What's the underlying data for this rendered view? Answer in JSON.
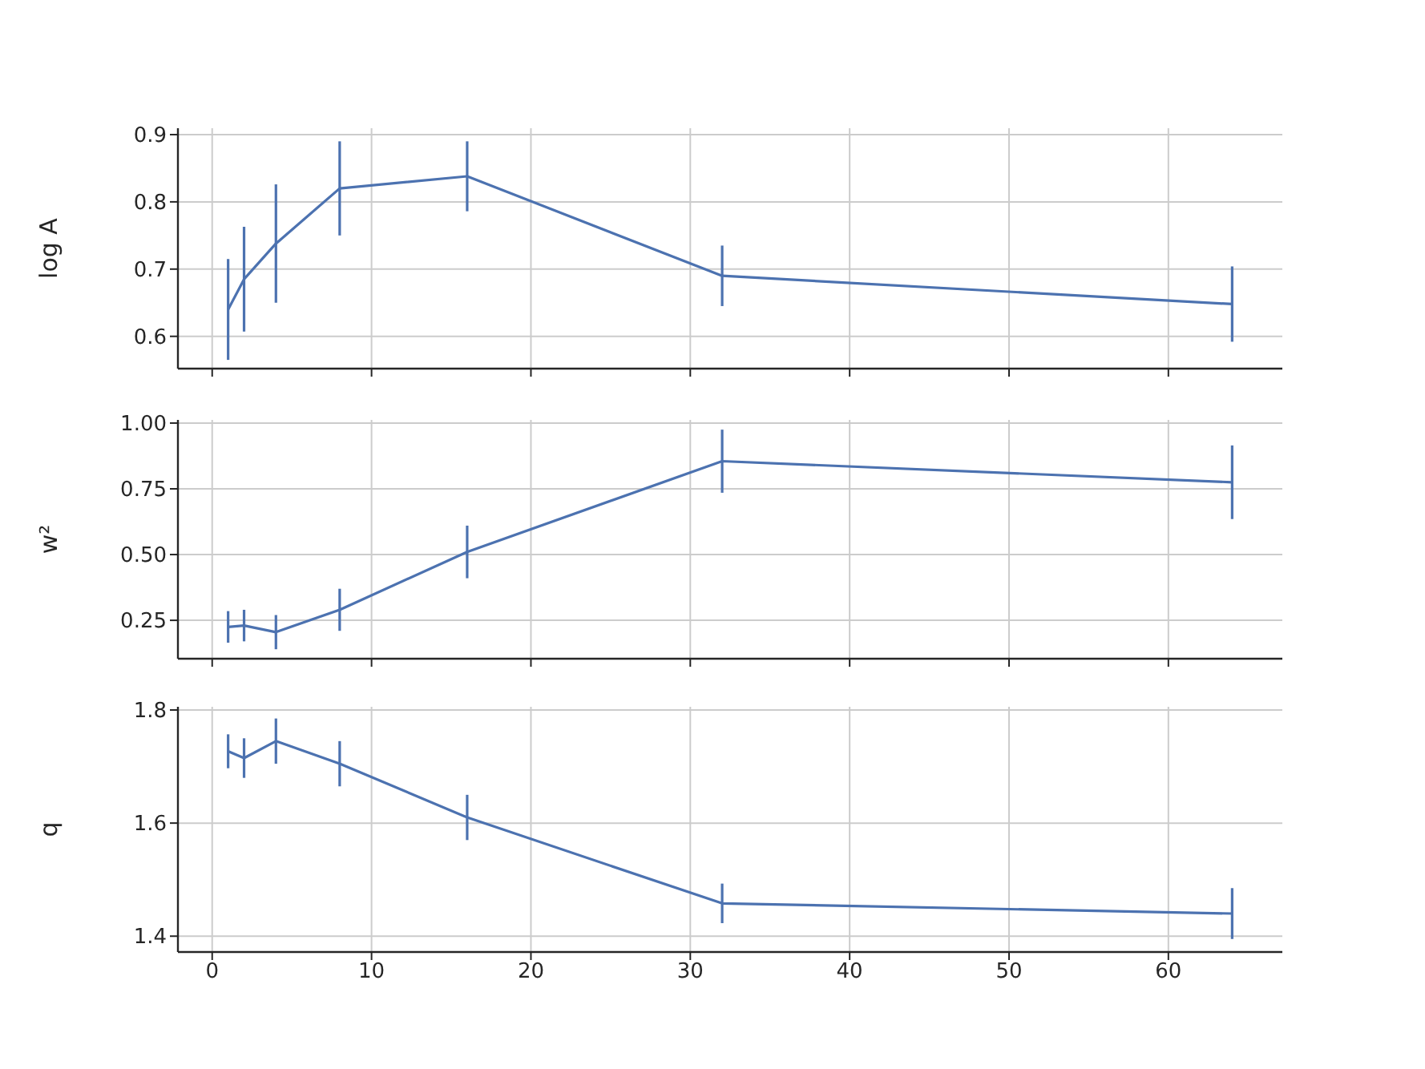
{
  "chart_data": [
    {
      "type": "line",
      "x": [
        1,
        2,
        4,
        8,
        16,
        32,
        64
      ],
      "ylabel": "log A",
      "color": "#4c72b0",
      "values": [
        0.64,
        0.685,
        0.738,
        0.82,
        0.838,
        0.69,
        0.648
      ],
      "errors": [
        0.075,
        0.078,
        0.088,
        0.07,
        0.052,
        0.045,
        0.056
      ],
      "xlim": [
        -2.15,
        67.15
      ],
      "xticks": [
        0,
        10,
        20,
        30,
        40,
        50,
        60
      ],
      "ylim": [
        0.552,
        0.9095
      ],
      "yticks": [
        0.6,
        0.7,
        0.8,
        0.9
      ],
      "grid": true,
      "tick_labels": "y",
      "marker": "none"
    },
    {
      "type": "line",
      "x": [
        1,
        2,
        4,
        8,
        16,
        32,
        64
      ],
      "ylabel": "w²",
      "color": "#4c72b0",
      "values": [
        0.225,
        0.23,
        0.205,
        0.29,
        0.51,
        0.855,
        0.775
      ],
      "errors": [
        0.06,
        0.06,
        0.065,
        0.08,
        0.1,
        0.12,
        0.14
      ],
      "xlim": [
        -2.15,
        67.15
      ],
      "xticks": [
        0,
        10,
        20,
        30,
        40,
        50,
        60
      ],
      "ylim": [
        0.104,
        1.012
      ],
      "yticks": [
        {
          "value": 0.25,
          "label": "0.25"
        },
        {
          "value": 0.5,
          "label": "0.50"
        },
        {
          "value": 0.75,
          "label": "0.75"
        },
        {
          "value": 1,
          "label": "1.00"
        }
      ],
      "grid": true,
      "tick_labels": "y",
      "marker": "none"
    },
    {
      "type": "line",
      "x": [
        1,
        2,
        4,
        8,
        16,
        32,
        64
      ],
      "ylabel": "q",
      "color": "#4c72b0",
      "values": [
        1.727,
        1.715,
        1.745,
        1.705,
        1.61,
        1.458,
        1.44
      ],
      "errors": [
        0.03,
        0.035,
        0.04,
        0.04,
        0.04,
        0.035,
        0.045
      ],
      "xlim": [
        -2.15,
        67.15
      ],
      "xticks": [
        0,
        10,
        20,
        30,
        40,
        50,
        60
      ],
      "ylim": [
        1.372,
        1.8057
      ],
      "yticks": [
        1.4,
        1.6,
        1.8
      ],
      "grid": true,
      "marker": "none"
    }
  ]
}
